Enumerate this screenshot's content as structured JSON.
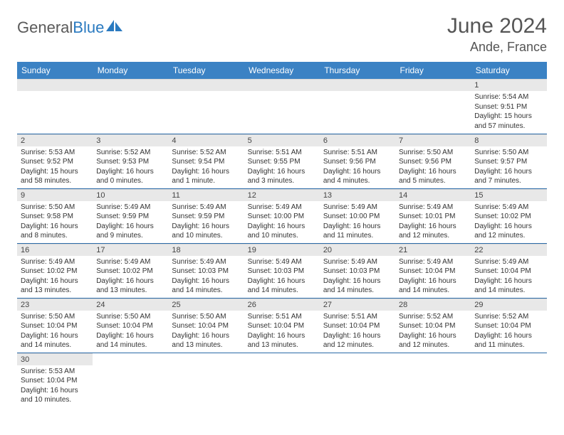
{
  "logo": {
    "part1": "General",
    "part2": "Blue"
  },
  "title": "June 2024",
  "location": "Ande, France",
  "colors": {
    "header_bg": "#3b82c4",
    "header_text": "#ffffff",
    "daynum_bg": "#e8e8e8",
    "row_border": "#2a6aa8",
    "text": "#333333",
    "title_text": "#555555",
    "logo_gray": "#5a5a5a",
    "logo_blue": "#2a7ac0"
  },
  "weekdays": [
    "Sunday",
    "Monday",
    "Tuesday",
    "Wednesday",
    "Thursday",
    "Friday",
    "Saturday"
  ],
  "weeks": [
    [
      null,
      null,
      null,
      null,
      null,
      null,
      {
        "n": "1",
        "sr": "Sunrise: 5:54 AM",
        "ss": "Sunset: 9:51 PM",
        "dl": "Daylight: 15 hours and 57 minutes."
      }
    ],
    [
      {
        "n": "2",
        "sr": "Sunrise: 5:53 AM",
        "ss": "Sunset: 9:52 PM",
        "dl": "Daylight: 15 hours and 58 minutes."
      },
      {
        "n": "3",
        "sr": "Sunrise: 5:52 AM",
        "ss": "Sunset: 9:53 PM",
        "dl": "Daylight: 16 hours and 0 minutes."
      },
      {
        "n": "4",
        "sr": "Sunrise: 5:52 AM",
        "ss": "Sunset: 9:54 PM",
        "dl": "Daylight: 16 hours and 1 minute."
      },
      {
        "n": "5",
        "sr": "Sunrise: 5:51 AM",
        "ss": "Sunset: 9:55 PM",
        "dl": "Daylight: 16 hours and 3 minutes."
      },
      {
        "n": "6",
        "sr": "Sunrise: 5:51 AM",
        "ss": "Sunset: 9:56 PM",
        "dl": "Daylight: 16 hours and 4 minutes."
      },
      {
        "n": "7",
        "sr": "Sunrise: 5:50 AM",
        "ss": "Sunset: 9:56 PM",
        "dl": "Daylight: 16 hours and 5 minutes."
      },
      {
        "n": "8",
        "sr": "Sunrise: 5:50 AM",
        "ss": "Sunset: 9:57 PM",
        "dl": "Daylight: 16 hours and 7 minutes."
      }
    ],
    [
      {
        "n": "9",
        "sr": "Sunrise: 5:50 AM",
        "ss": "Sunset: 9:58 PM",
        "dl": "Daylight: 16 hours and 8 minutes."
      },
      {
        "n": "10",
        "sr": "Sunrise: 5:49 AM",
        "ss": "Sunset: 9:59 PM",
        "dl": "Daylight: 16 hours and 9 minutes."
      },
      {
        "n": "11",
        "sr": "Sunrise: 5:49 AM",
        "ss": "Sunset: 9:59 PM",
        "dl": "Daylight: 16 hours and 10 minutes."
      },
      {
        "n": "12",
        "sr": "Sunrise: 5:49 AM",
        "ss": "Sunset: 10:00 PM",
        "dl": "Daylight: 16 hours and 10 minutes."
      },
      {
        "n": "13",
        "sr": "Sunrise: 5:49 AM",
        "ss": "Sunset: 10:00 PM",
        "dl": "Daylight: 16 hours and 11 minutes."
      },
      {
        "n": "14",
        "sr": "Sunrise: 5:49 AM",
        "ss": "Sunset: 10:01 PM",
        "dl": "Daylight: 16 hours and 12 minutes."
      },
      {
        "n": "15",
        "sr": "Sunrise: 5:49 AM",
        "ss": "Sunset: 10:02 PM",
        "dl": "Daylight: 16 hours and 12 minutes."
      }
    ],
    [
      {
        "n": "16",
        "sr": "Sunrise: 5:49 AM",
        "ss": "Sunset: 10:02 PM",
        "dl": "Daylight: 16 hours and 13 minutes."
      },
      {
        "n": "17",
        "sr": "Sunrise: 5:49 AM",
        "ss": "Sunset: 10:02 PM",
        "dl": "Daylight: 16 hours and 13 minutes."
      },
      {
        "n": "18",
        "sr": "Sunrise: 5:49 AM",
        "ss": "Sunset: 10:03 PM",
        "dl": "Daylight: 16 hours and 14 minutes."
      },
      {
        "n": "19",
        "sr": "Sunrise: 5:49 AM",
        "ss": "Sunset: 10:03 PM",
        "dl": "Daylight: 16 hours and 14 minutes."
      },
      {
        "n": "20",
        "sr": "Sunrise: 5:49 AM",
        "ss": "Sunset: 10:03 PM",
        "dl": "Daylight: 16 hours and 14 minutes."
      },
      {
        "n": "21",
        "sr": "Sunrise: 5:49 AM",
        "ss": "Sunset: 10:04 PM",
        "dl": "Daylight: 16 hours and 14 minutes."
      },
      {
        "n": "22",
        "sr": "Sunrise: 5:49 AM",
        "ss": "Sunset: 10:04 PM",
        "dl": "Daylight: 16 hours and 14 minutes."
      }
    ],
    [
      {
        "n": "23",
        "sr": "Sunrise: 5:50 AM",
        "ss": "Sunset: 10:04 PM",
        "dl": "Daylight: 16 hours and 14 minutes."
      },
      {
        "n": "24",
        "sr": "Sunrise: 5:50 AM",
        "ss": "Sunset: 10:04 PM",
        "dl": "Daylight: 16 hours and 14 minutes."
      },
      {
        "n": "25",
        "sr": "Sunrise: 5:50 AM",
        "ss": "Sunset: 10:04 PM",
        "dl": "Daylight: 16 hours and 13 minutes."
      },
      {
        "n": "26",
        "sr": "Sunrise: 5:51 AM",
        "ss": "Sunset: 10:04 PM",
        "dl": "Daylight: 16 hours and 13 minutes."
      },
      {
        "n": "27",
        "sr": "Sunrise: 5:51 AM",
        "ss": "Sunset: 10:04 PM",
        "dl": "Daylight: 16 hours and 12 minutes."
      },
      {
        "n": "28",
        "sr": "Sunrise: 5:52 AM",
        "ss": "Sunset: 10:04 PM",
        "dl": "Daylight: 16 hours and 12 minutes."
      },
      {
        "n": "29",
        "sr": "Sunrise: 5:52 AM",
        "ss": "Sunset: 10:04 PM",
        "dl": "Daylight: 16 hours and 11 minutes."
      }
    ],
    [
      {
        "n": "30",
        "sr": "Sunrise: 5:53 AM",
        "ss": "Sunset: 10:04 PM",
        "dl": "Daylight: 16 hours and 10 minutes."
      },
      null,
      null,
      null,
      null,
      null,
      null
    ]
  ]
}
